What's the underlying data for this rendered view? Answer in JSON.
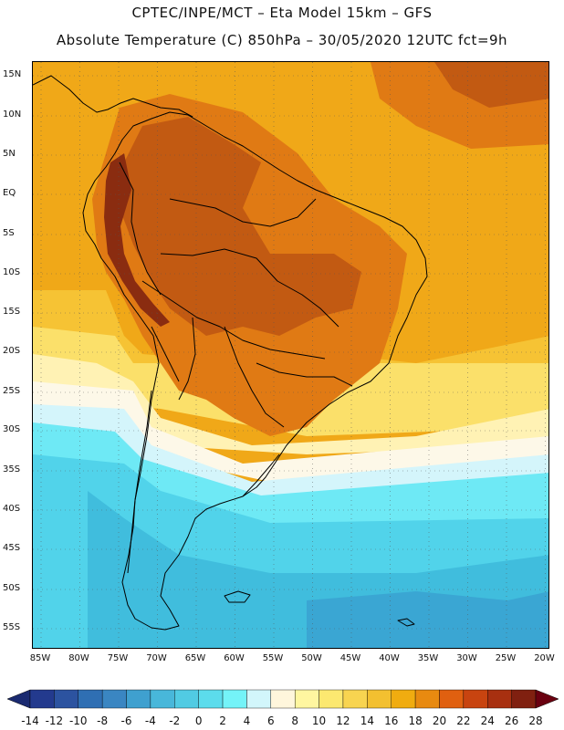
{
  "title_line1": "CPTEC/INPE/MCT –  Eta Model 15km – GFS",
  "title_line2": "Absolute Temperature (C) 850hPa – 30/05/2020 12UTC fct=9h",
  "lat_labels": [
    "15N",
    "10N",
    "5N",
    "EQ",
    "5S",
    "10S",
    "15S",
    "20S",
    "25S",
    "30S",
    "35S",
    "40S",
    "45S",
    "50S",
    "55S"
  ],
  "lon_labels": [
    "85W",
    "80W",
    "75W",
    "70W",
    "65W",
    "60W",
    "55W",
    "50W",
    "45W",
    "40W",
    "35W",
    "30W",
    "25W",
    "20W"
  ],
  "colorbar": {
    "labels": [
      "-14",
      "-12",
      "-10",
      "-8",
      "-6",
      "-4",
      "-2",
      "0",
      "2",
      "4",
      "6",
      "8",
      "10",
      "12",
      "14",
      "16",
      "18",
      "20",
      "22",
      "24",
      "26",
      "28"
    ],
    "colors": [
      "#233a8e",
      "#2c53a0",
      "#2f6fb3",
      "#3a86c2",
      "#3fa0cf",
      "#48b7da",
      "#51cbe3",
      "#5cdcec",
      "#74f3f8",
      "#d2f6fb",
      "#fff6dc",
      "#fff6a0",
      "#fce870",
      "#f8d450",
      "#f3c030",
      "#f0ac10",
      "#e88a10",
      "#e06010",
      "#c84410",
      "#a83010",
      "#802010"
    ],
    "low_arrow_color": "#1a2a70",
    "high_arrow_color": "#6a0010"
  },
  "map_colors": {
    "hot_dark": "#c25a12",
    "hot_deep": "#8a2c10",
    "hot": "#e07a14",
    "warm": "#f0a818",
    "warm_light": "#f6c334",
    "mild": "#fbe06a",
    "mild_light": "#fff2b4",
    "cool_cream": "#fdf8e8",
    "cool_ice": "#d4f5fb",
    "cold_cyan": "#6ee9f5",
    "cold_teal": "#51d3ea",
    "cold_blue": "#40bddd",
    "cold_deep": "#3aa6d3"
  }
}
